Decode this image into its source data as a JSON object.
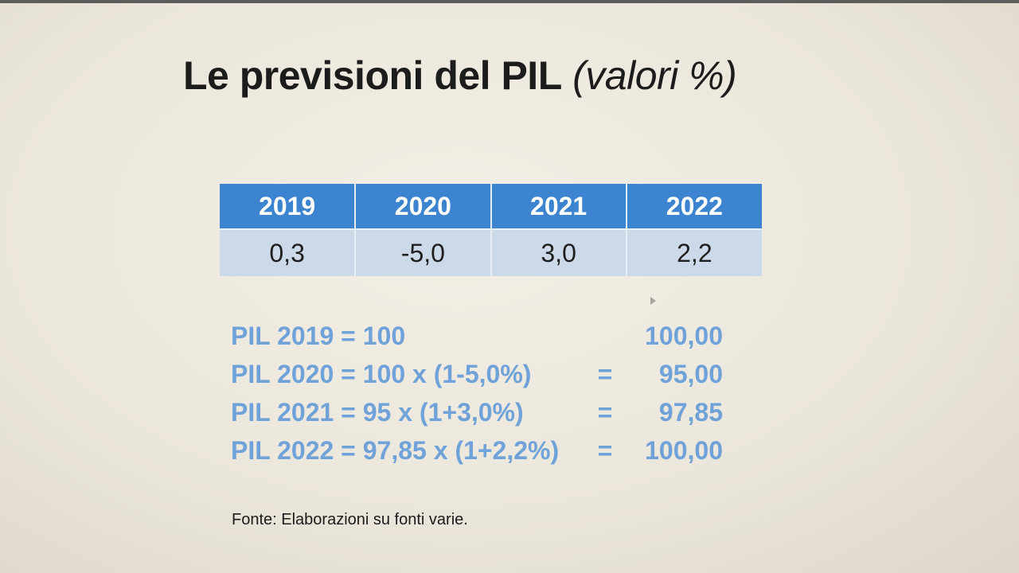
{
  "slide": {
    "title_main": "Le previsioni del PIL",
    "title_sub": "(valori %)"
  },
  "table": {
    "headers": [
      "2019",
      "2020",
      "2021",
      "2022"
    ],
    "values": [
      "0,3",
      "-5,0",
      "3,0",
      "2,2"
    ]
  },
  "calculations": [
    {
      "formula": "PIL 2019 = 100",
      "equals": "",
      "result": "100,00"
    },
    {
      "formula": "PIL 2020 = 100 x (1-5,0%)",
      "equals": "=",
      "result": "95,00"
    },
    {
      "formula": "PIL 2021 = 95 x (1+3,0%)",
      "equals": "=",
      "result": "97,85"
    },
    {
      "formula": "PIL 2022 = 97,85 x (1+2,2%)",
      "equals": "=",
      "result": "100,00"
    }
  ],
  "source": "Fonte: Elaborazioni su fonti varie.",
  "colors": {
    "header_bg": "#3c84cf",
    "cell_bg": "#ccd9e8",
    "calc_text": "#6fa2d8"
  }
}
